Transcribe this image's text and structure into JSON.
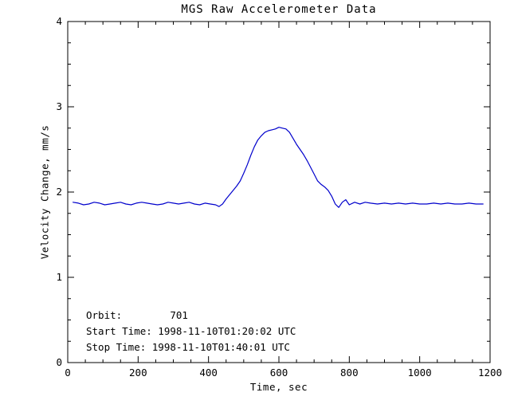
{
  "page": {
    "background": "#ffffff"
  },
  "chart_data": {
    "type": "line",
    "title": "MGS Raw Accelerometer Data",
    "xlabel": "Time, sec",
    "ylabel": "Velocity Change, mm/s",
    "xlim": [
      0,
      1200
    ],
    "ylim": [
      0,
      4
    ],
    "x_ticks": [
      0,
      200,
      400,
      600,
      800,
      1000,
      1200
    ],
    "y_ticks": [
      0,
      1,
      2,
      3,
      4
    ],
    "x_minor_divisions": 4,
    "y_minor_divisions": 4,
    "grid": false,
    "legend": "none",
    "axis_color": "#000000",
    "line_color": "#0000cc",
    "series": [
      {
        "name": "velocity_change",
        "x": [
          15,
          30,
          45,
          60,
          75,
          90,
          105,
          120,
          135,
          150,
          165,
          180,
          195,
          210,
          225,
          240,
          255,
          270,
          285,
          300,
          315,
          330,
          345,
          360,
          375,
          390,
          405,
          420,
          430,
          440,
          450,
          460,
          470,
          480,
          490,
          500,
          510,
          520,
          530,
          540,
          550,
          560,
          570,
          580,
          590,
          600,
          610,
          620,
          630,
          640,
          650,
          660,
          670,
          680,
          690,
          700,
          710,
          720,
          730,
          740,
          750,
          760,
          770,
          780,
          790,
          800,
          815,
          830,
          845,
          860,
          880,
          900,
          920,
          940,
          960,
          980,
          1000,
          1020,
          1040,
          1060,
          1080,
          1100,
          1120,
          1140,
          1160,
          1180
        ],
        "y": [
          1.88,
          1.87,
          1.85,
          1.86,
          1.88,
          1.87,
          1.85,
          1.86,
          1.87,
          1.88,
          1.86,
          1.85,
          1.87,
          1.88,
          1.87,
          1.86,
          1.85,
          1.86,
          1.88,
          1.87,
          1.86,
          1.87,
          1.88,
          1.86,
          1.85,
          1.87,
          1.86,
          1.85,
          1.83,
          1.86,
          1.92,
          1.97,
          2.02,
          2.07,
          2.13,
          2.22,
          2.32,
          2.43,
          2.53,
          2.61,
          2.66,
          2.7,
          2.72,
          2.73,
          2.74,
          2.76,
          2.75,
          2.74,
          2.7,
          2.63,
          2.56,
          2.5,
          2.44,
          2.37,
          2.29,
          2.21,
          2.13,
          2.09,
          2.06,
          2.02,
          1.95,
          1.86,
          1.82,
          1.88,
          1.91,
          1.85,
          1.88,
          1.86,
          1.88,
          1.87,
          1.86,
          1.87,
          1.86,
          1.87,
          1.86,
          1.87,
          1.86,
          1.86,
          1.87,
          1.86,
          1.87,
          1.86,
          1.86,
          1.87,
          1.86,
          1.86
        ]
      }
    ],
    "annotations": [
      "Orbit:        701",
      "Start Time: 1998-11-10T01:20:02 UTC",
      "Stop Time: 1998-11-10T01:40:01 UTC"
    ]
  }
}
